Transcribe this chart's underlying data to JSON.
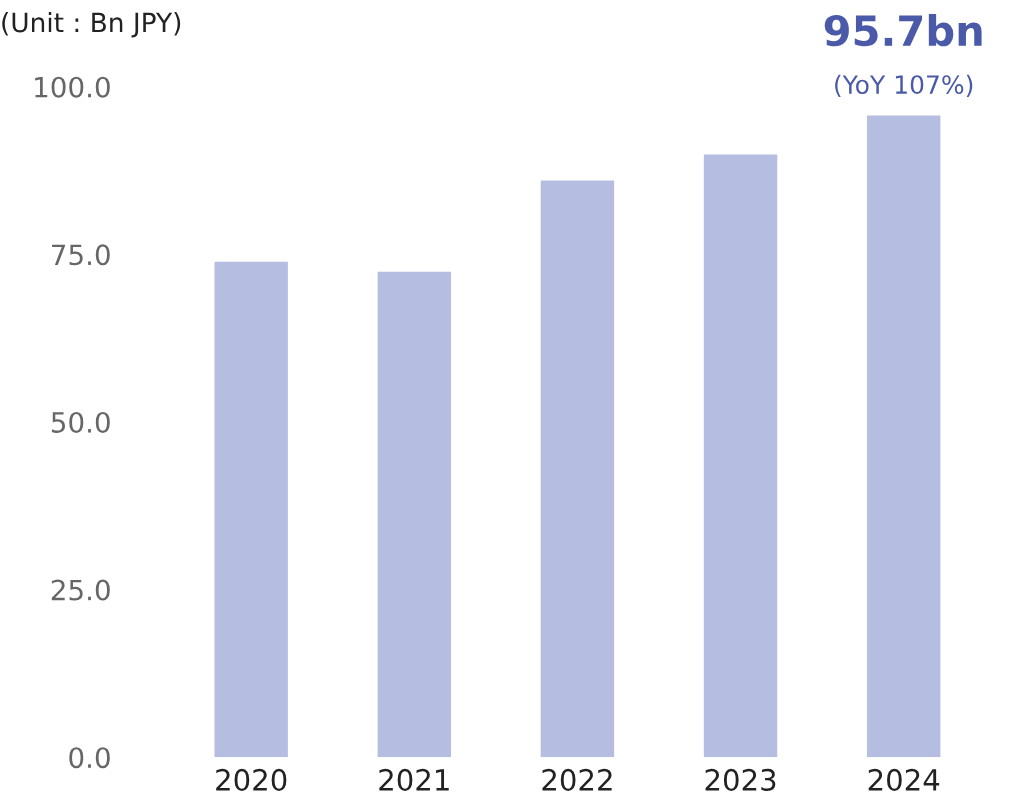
{
  "chart_data": {
    "type": "bar",
    "ylabel": "(Unit : Bn JPY)",
    "categories": [
      "2020",
      "2021",
      "2022",
      "2023",
      "2024"
    ],
    "values": [
      73.9,
      72.4,
      86.0,
      89.9,
      95.7
    ],
    "value_labels": [
      null,
      null,
      null,
      null,
      "95.7bn"
    ],
    "color": "#b5bde0",
    "ylim": [
      0,
      100
    ],
    "yticks": [
      {
        "value": 0,
        "label": "0.0"
      },
      {
        "value": 25,
        "label": "25.0"
      },
      {
        "value": 50,
        "label": "50.0"
      },
      {
        "value": 75,
        "label": "75.0"
      },
      {
        "value": 100,
        "label": "100.0"
      }
    ],
    "annotations": [
      {
        "text": "(YoY 107%)",
        "x": "2024",
        "y": 95.7
      }
    ],
    "grid": false,
    "legend": false
  }
}
